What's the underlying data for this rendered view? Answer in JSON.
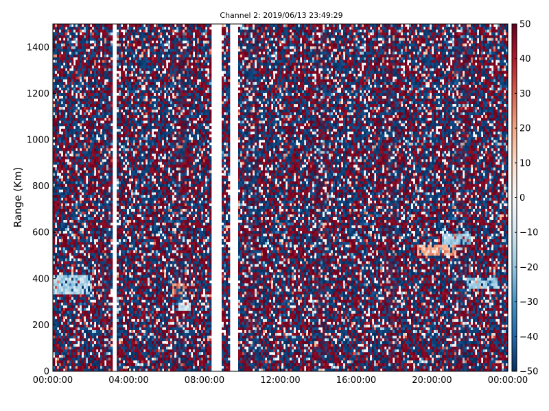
{
  "chart_data": {
    "type": "heatmap",
    "title": "Channel 2: 2019/06/13 23:49:29",
    "xlabel": "",
    "ylabel": "Range (Km)",
    "x_range": [
      "00:00:00",
      "24:00:00"
    ],
    "ylim": [
      0,
      1500
    ],
    "x_ticks": [
      "00:00:00",
      "04:00:00",
      "08:00:00",
      "12:00:00",
      "16:00:00",
      "20:00:00",
      "00:00:00"
    ],
    "y_ticks": [
      "0",
      "200",
      "400",
      "600",
      "800",
      "1000",
      "1200",
      "1400"
    ],
    "colorbar": {
      "min": -50,
      "max": 50,
      "ticks": [
        "50",
        "40",
        "30",
        "20",
        "10",
        "0",
        "−10",
        "−20",
        "−30",
        "−40",
        "−50"
      ],
      "colormap": "RdBu_r",
      "low_color": "#053061",
      "mid_color": "#f7f7f7",
      "high_color": "#67001f"
    },
    "data_gaps_hours": [
      [
        3.15,
        3.35
      ],
      [
        8.4,
        8.9
      ],
      [
        9.35,
        9.75
      ]
    ],
    "features": [
      {
        "name": "negative patch",
        "x_hours": [
          0.0,
          2.1
        ],
        "y_range": [
          330,
          420
        ],
        "value": -15
      },
      {
        "name": "positive patch",
        "x_hours": [
          6.3,
          7.0
        ],
        "y_range": [
          330,
          380
        ],
        "value": 25
      },
      {
        "name": "negative patch",
        "x_hours": [
          6.6,
          7.3
        ],
        "y_range": [
          260,
          300
        ],
        "value": -10
      },
      {
        "name": "positive patch",
        "x_hours": [
          19.2,
          21.3
        ],
        "y_range": [
          500,
          550
        ],
        "value": 20
      },
      {
        "name": "negative patch",
        "x_hours": [
          20.5,
          22.0
        ],
        "y_range": [
          550,
          590
        ],
        "value": -20
      },
      {
        "name": "negative patch",
        "x_hours": [
          21.8,
          23.5
        ],
        "y_range": [
          360,
          400
        ],
        "value": -20
      }
    ],
    "grid": false,
    "legend": "none"
  }
}
